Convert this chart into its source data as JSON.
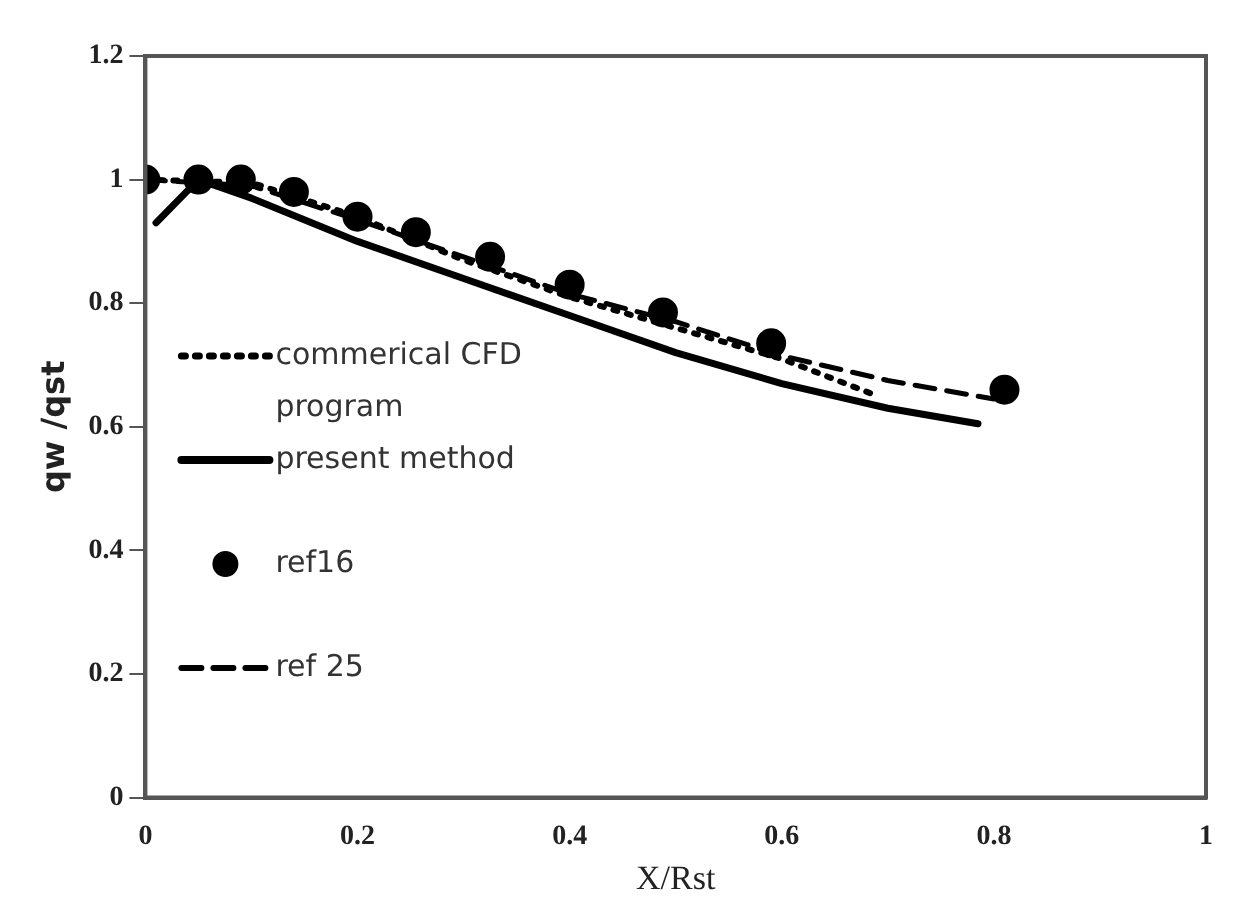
{
  "chart_data": {
    "type": "line",
    "xlabel": "X/Rst",
    "ylabel": "qw /qst",
    "xlim": [
      0,
      1
    ],
    "xticks": [
      0,
      0.2,
      0.4,
      0.6,
      0.8,
      1
    ],
    "ylim": [
      0,
      1.2
    ],
    "yticks": [
      0,
      0.2,
      0.4,
      0.6,
      0.8,
      1,
      1.2
    ],
    "grid": false,
    "legend": "left",
    "series": [
      {
        "name": "commerical CFD program",
        "type": "line",
        "line_style": "dotted",
        "color": "#000000",
        "x": [
          0,
          0.1,
          0.2,
          0.3,
          0.4,
          0.5,
          0.6,
          0.69
        ],
        "values": [
          1.0,
          0.995,
          0.94,
          0.87,
          0.81,
          0.76,
          0.71,
          0.65
        ]
      },
      {
        "name": "present method",
        "type": "line",
        "line_style": "solid",
        "color": "#000000",
        "x": [
          0.01,
          0.05,
          0.1,
          0.2,
          0.3,
          0.4,
          0.5,
          0.6,
          0.7,
          0.785
        ],
        "values": [
          0.93,
          1.0,
          0.97,
          0.9,
          0.84,
          0.78,
          0.72,
          0.67,
          0.63,
          0.605
        ]
      },
      {
        "name": "ref16",
        "type": "scatter",
        "marker": "circle",
        "color": "#000000",
        "x": [
          0,
          0.05,
          0.09,
          0.14,
          0.2,
          0.255,
          0.325,
          0.4,
          0.488,
          0.59,
          0.81
        ],
        "values": [
          1.0,
          1.0,
          1.0,
          0.98,
          0.94,
          0.915,
          0.875,
          0.83,
          0.785,
          0.735,
          0.66
        ]
      },
      {
        "name": "ref 25",
        "type": "line",
        "line_style": "dashed",
        "color": "#000000",
        "x": [
          0,
          0.1,
          0.2,
          0.3,
          0.4,
          0.5,
          0.6,
          0.7,
          0.8
        ],
        "values": [
          1.0,
          0.99,
          0.935,
          0.875,
          0.815,
          0.77,
          0.715,
          0.675,
          0.645
        ]
      }
    ]
  }
}
